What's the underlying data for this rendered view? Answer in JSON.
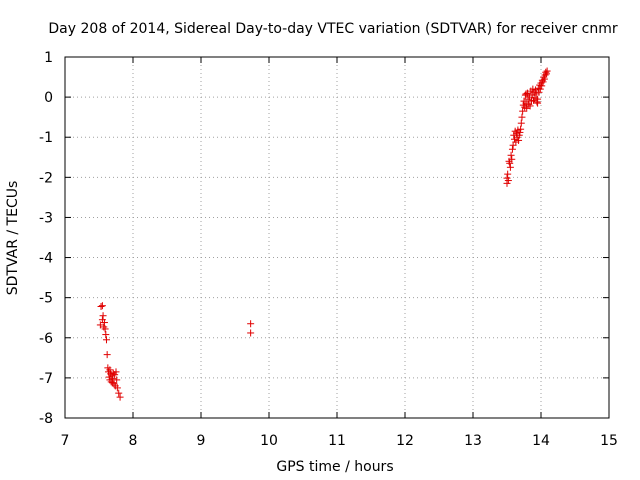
{
  "chart_data": {
    "type": "scatter",
    "title": "Day 208 of 2014, Sidereal Day-to-day VTEC variation (SDTVAR) for receiver cnmr",
    "xlabel": "GPS time / hours",
    "ylabel": "SDTVAR / TECUs",
    "xlim": [
      7,
      15
    ],
    "ylim": [
      -8,
      1
    ],
    "xticks": [
      7,
      8,
      9,
      10,
      11,
      12,
      13,
      14,
      15
    ],
    "yticks": [
      -8,
      -7,
      -6,
      -5,
      -4,
      -3,
      -2,
      -1,
      0,
      1
    ],
    "xtick_labels": [
      "7",
      "8",
      "9",
      "10",
      "11",
      "12",
      "13",
      "14",
      "15"
    ],
    "ytick_labels": [
      "-8",
      "-7",
      "-6",
      "-5",
      "-4",
      "-3",
      "-2",
      "-1",
      "0",
      "1"
    ],
    "grid": true,
    "marker": "+",
    "series": [
      {
        "name": "SDTVAR",
        "color": "#e00000",
        "points": [
          [
            7.53,
            -5.22
          ],
          [
            7.55,
            -5.2
          ],
          [
            7.52,
            -5.68
          ],
          [
            7.55,
            -5.55
          ],
          [
            7.56,
            -5.45
          ],
          [
            7.58,
            -5.62
          ],
          [
            7.57,
            -5.73
          ],
          [
            7.59,
            -5.78
          ],
          [
            7.6,
            -5.92
          ],
          [
            7.61,
            -6.05
          ],
          [
            7.62,
            -6.42
          ],
          [
            7.63,
            -6.75
          ],
          [
            7.64,
            -6.85
          ],
          [
            7.65,
            -6.98
          ],
          [
            7.66,
            -7.05
          ],
          [
            7.67,
            -6.9
          ],
          [
            7.68,
            -7.1
          ],
          [
            7.69,
            -6.95
          ],
          [
            7.7,
            -7.02
          ],
          [
            7.71,
            -6.88
          ],
          [
            7.72,
            -7.15
          ],
          [
            7.73,
            -6.92
          ],
          [
            7.74,
            -7.2
          ],
          [
            7.75,
            -6.85
          ],
          [
            7.76,
            -7.05
          ],
          [
            7.77,
            -7.25
          ],
          [
            7.79,
            -7.38
          ],
          [
            7.81,
            -7.48
          ],
          [
            7.7,
            -7.12
          ],
          [
            7.66,
            -6.8
          ],
          [
            9.73,
            -5.65
          ],
          [
            9.73,
            -5.88
          ],
          [
            13.5,
            -2.02
          ],
          [
            13.5,
            -2.15
          ],
          [
            13.51,
            -1.92
          ],
          [
            13.52,
            -2.08
          ],
          [
            13.53,
            -1.6
          ],
          [
            13.54,
            -1.65
          ],
          [
            13.55,
            -1.75
          ],
          [
            13.56,
            -1.45
          ],
          [
            13.57,
            -1.55
          ],
          [
            13.58,
            -1.3
          ],
          [
            13.59,
            -1.2
          ],
          [
            13.6,
            -0.95
          ],
          [
            13.61,
            -1.05
          ],
          [
            13.62,
            -0.85
          ],
          [
            13.63,
            -1.12
          ],
          [
            13.64,
            -0.9
          ],
          [
            13.65,
            -1.0
          ],
          [
            13.66,
            -0.82
          ],
          [
            13.67,
            -1.08
          ],
          [
            13.68,
            -0.95
          ],
          [
            13.69,
            -0.88
          ],
          [
            13.7,
            -0.8
          ],
          [
            13.71,
            -0.65
          ],
          [
            13.72,
            -0.5
          ],
          [
            13.73,
            -0.35
          ],
          [
            13.74,
            -0.2
          ],
          [
            13.75,
            -0.1
          ],
          [
            13.76,
            -0.25
          ],
          [
            13.77,
            0.05
          ],
          [
            13.78,
            -0.15
          ],
          [
            13.79,
            -0.28
          ],
          [
            13.8,
            0.1
          ],
          [
            13.81,
            -0.05
          ],
          [
            13.82,
            -0.18
          ],
          [
            13.83,
            0.0
          ],
          [
            13.84,
            -0.22
          ],
          [
            13.85,
            0.15
          ],
          [
            13.86,
            -0.1
          ],
          [
            13.87,
            0.05
          ],
          [
            13.88,
            0.2
          ],
          [
            13.89,
            -0.08
          ],
          [
            13.9,
            0.12
          ],
          [
            13.91,
            -0.02
          ],
          [
            13.92,
            0.18
          ],
          [
            13.93,
            0.08
          ],
          [
            13.94,
            -0.12
          ],
          [
            13.95,
            -0.05
          ],
          [
            13.96,
            0.22
          ],
          [
            13.97,
            0.12
          ],
          [
            13.98,
            0.3
          ],
          [
            13.99,
            0.2
          ],
          [
            14.0,
            0.35
          ],
          [
            14.01,
            0.28
          ],
          [
            14.02,
            0.42
          ],
          [
            14.03,
            0.38
          ],
          [
            14.04,
            0.5
          ],
          [
            14.05,
            0.45
          ],
          [
            14.06,
            0.55
          ],
          [
            14.07,
            0.62
          ],
          [
            14.08,
            0.58
          ],
          [
            14.09,
            0.65
          ],
          [
            13.95,
            -0.15
          ],
          [
            13.78,
            0.08
          ]
        ]
      }
    ]
  }
}
